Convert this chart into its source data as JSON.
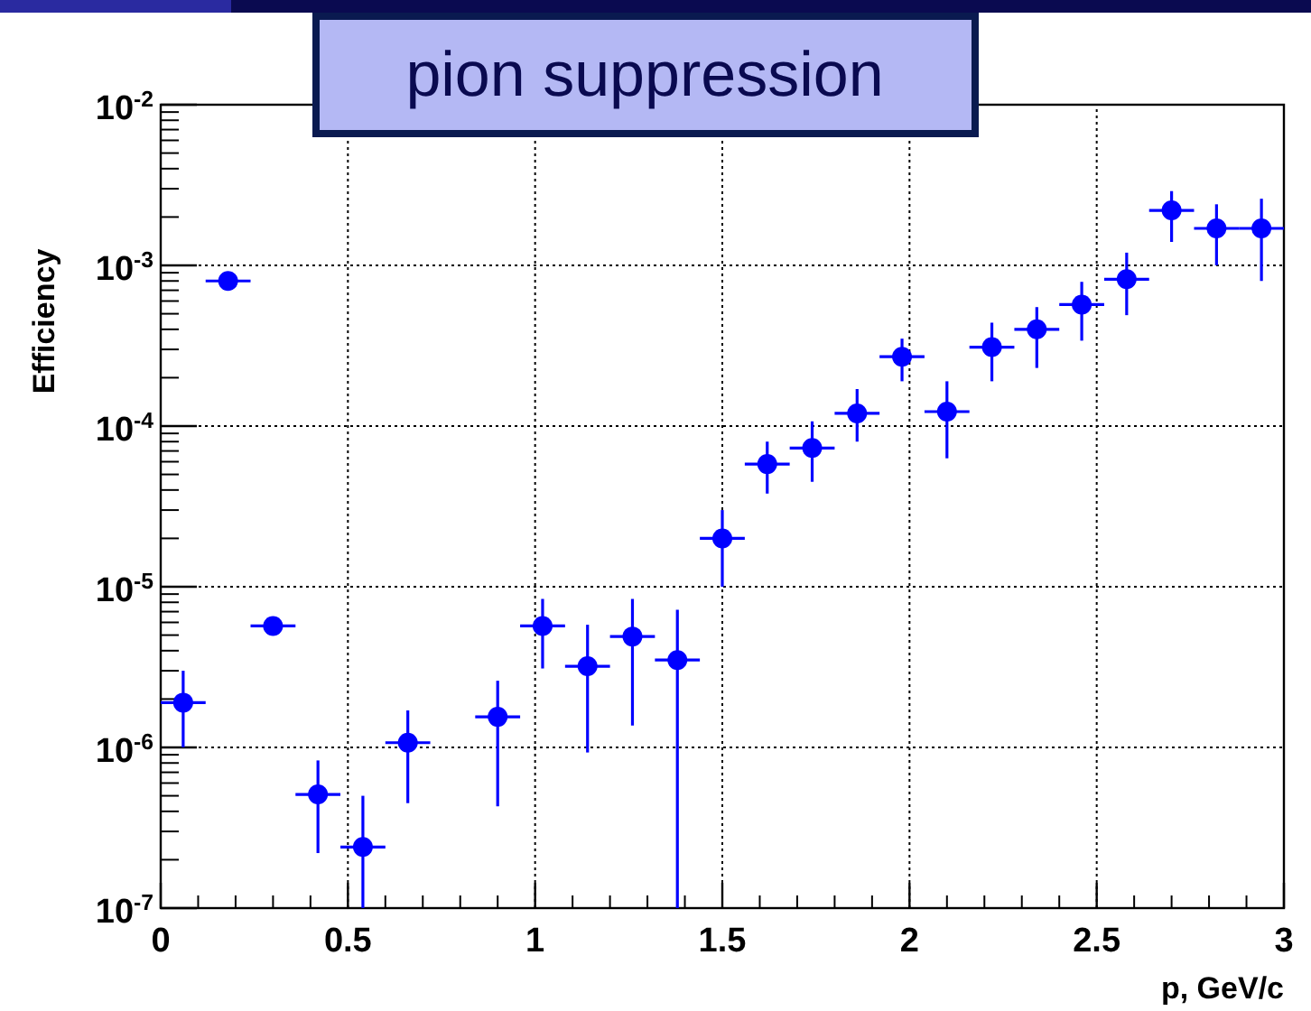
{
  "chart_data": {
    "type": "scatter",
    "title": "pion suppression",
    "xlabel": "p, GeV/c",
    "ylabel": "Efficiency",
    "log": "y",
    "grid": true,
    "marker": "circle",
    "xlim": [
      0,
      3
    ],
    "xticks": [
      0,
      0.5,
      1,
      1.5,
      2,
      2.5,
      3
    ],
    "ylim": [
      1e-07,
      0.01
    ],
    "yticks": [
      {
        "value": 1e-07,
        "label": "10$^{-7}$"
      },
      {
        "value": 1e-06,
        "label": "10$^{-6}$"
      },
      {
        "value": 1e-05,
        "label": "10$^{-5}$"
      },
      {
        "value": 0.0001,
        "label": "10$^{-4}$"
      },
      {
        "value": 0.001,
        "label": "10$^{-3}$"
      },
      {
        "value": 0.01,
        "label": "10$^{-2}$"
      }
    ],
    "series": [
      {
        "color": "#0000ff",
        "x": [
          0.06,
          0.18,
          0.3,
          0.42,
          0.54,
          0.66,
          0.9,
          1.02,
          1.14,
          1.26,
          1.38,
          1.5,
          1.62,
          1.74,
          1.86,
          1.98,
          2.1,
          2.22,
          2.34,
          2.46,
          2.58,
          2.7,
          2.82,
          2.94
        ],
        "values": [
          1.9e-06,
          0.0008,
          5.7e-06,
          5.1e-07,
          2.4e-07,
          1.07e-06,
          1.55e-06,
          5.7e-06,
          3.2e-06,
          4.9e-06,
          3.5e-06,
          2e-05,
          5.8e-05,
          7.3e-05,
          0.00012,
          0.00027,
          0.000123,
          0.00031,
          0.0004,
          0.00057,
          0.00082,
          0.0022,
          0.0017,
          0.0017
        ],
        "errors": [
          [
            1e-06,
            3e-06
          ],
          [
            0.00075,
            0.00085
          ],
          [
            5e-06,
            6.5e-06
          ],
          [
            2.2e-07,
            8.3e-07
          ],
          [
            1e-07,
            5e-07
          ],
          [
            4.5e-07,
            1.7e-06
          ],
          [
            4.3e-07,
            2.6e-06
          ],
          [
            3.1e-06,
            8.4e-06
          ],
          [
            9.3e-07,
            5.8e-06
          ],
          [
            1.37e-06,
            8.4e-06
          ],
          [
            1e-07,
            7.2e-06
          ],
          [
            1e-05,
            3e-05
          ],
          [
            3.8e-05,
            8e-05
          ],
          [
            4.5e-05,
            0.000107
          ],
          [
            8e-05,
            0.00017
          ],
          [
            0.00019,
            0.00035
          ],
          [
            6.3e-05,
            0.00019
          ],
          [
            0.00019,
            0.00044
          ],
          [
            0.00023,
            0.00055
          ],
          [
            0.00034,
            0.00079
          ],
          [
            0.00049,
            0.0012
          ],
          [
            0.0014,
            0.0029
          ],
          [
            0.001,
            0.0024
          ],
          [
            0.0008,
            0.0026
          ]
        ],
        "xerrors": [
          0.06,
          0.06,
          0.06,
          0.06,
          0.06,
          0.06,
          0.06,
          0.06,
          0.06,
          0.06,
          0.06,
          0.06,
          0.06,
          0.06,
          0.06,
          0.06,
          0.06,
          0.06,
          0.06,
          0.06,
          0.06,
          0.06,
          0.06,
          0.06
        ]
      }
    ]
  }
}
